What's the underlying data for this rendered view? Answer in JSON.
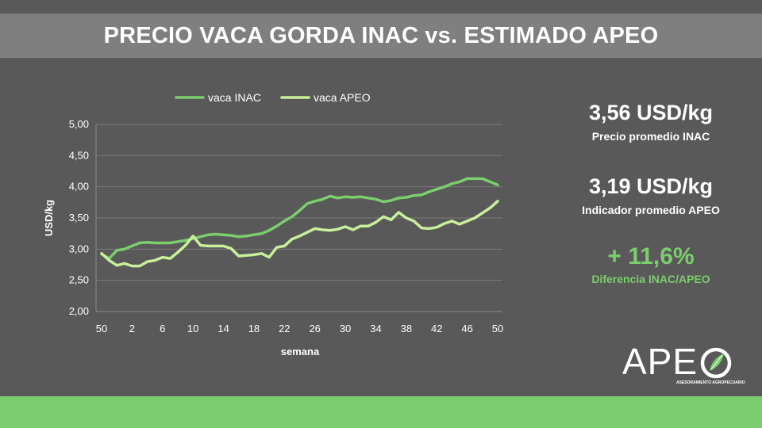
{
  "title": "PRECIO VACA GORDA INAC vs. ESTIMADO APEO",
  "chart_data": {
    "type": "line",
    "xlabel": "semana",
    "ylabel": "USD/kg",
    "ylim": [
      2.0,
      5.0
    ],
    "yticks": [
      "2,00",
      "2,50",
      "3,00",
      "3,50",
      "4,00",
      "4,50",
      "5,00"
    ],
    "xtick_labels": [
      "50",
      "2",
      "6",
      "10",
      "14",
      "18",
      "22",
      "26",
      "30",
      "34",
      "38",
      "42",
      "46",
      "50"
    ],
    "grid": true,
    "legend_position": "top",
    "series": [
      {
        "name": "vaca INAC",
        "color": "#7ccd6e",
        "values": [
          2.92,
          2.85,
          2.98,
          3.0,
          3.05,
          3.1,
          3.11,
          3.1,
          3.1,
          3.1,
          3.12,
          3.14,
          3.17,
          3.2,
          3.23,
          3.24,
          3.23,
          3.22,
          3.2,
          3.21,
          3.23,
          3.25,
          3.3,
          3.37,
          3.45,
          3.52,
          3.62,
          3.73,
          3.77,
          3.8,
          3.85,
          3.82,
          3.84,
          3.83,
          3.84,
          3.82,
          3.8,
          3.76,
          3.78,
          3.82,
          3.83,
          3.86,
          3.87,
          3.92,
          3.96,
          4.0,
          4.05,
          4.08,
          4.13,
          4.13,
          4.13,
          4.08,
          4.03
        ]
      },
      {
        "name": "vaca APEO",
        "color": "#c9ef9b",
        "values": [
          2.93,
          2.82,
          2.74,
          2.77,
          2.73,
          2.73,
          2.8,
          2.82,
          2.87,
          2.85,
          2.95,
          3.06,
          3.21,
          3.06,
          3.05,
          3.05,
          3.05,
          3.01,
          2.89,
          2.9,
          2.91,
          2.93,
          2.87,
          3.03,
          3.05,
          3.16,
          3.21,
          3.27,
          3.33,
          3.31,
          3.3,
          3.32,
          3.36,
          3.31,
          3.37,
          3.37,
          3.43,
          3.52,
          3.47,
          3.59,
          3.5,
          3.45,
          3.34,
          3.33,
          3.35,
          3.41,
          3.45,
          3.4,
          3.45,
          3.5,
          3.58,
          3.66,
          3.77
        ]
      }
    ]
  },
  "stats": [
    {
      "value": "3,56 USD/kg",
      "label": "Precio promedio INAC"
    },
    {
      "value": "3,19 USD/kg",
      "label": "Indicador promedio APEO"
    },
    {
      "value": "+ 11,6%",
      "label": "Diferencia INAC/APEO"
    }
  ],
  "logo": {
    "text": "APE",
    "subtitle": "ASESORAMIENTO AGROPECUARIO"
  },
  "colors": {
    "background": "#595959",
    "title_band": "#7f7f7f",
    "accent_green": "#7ccd6e",
    "light_green": "#c9ef9b"
  }
}
